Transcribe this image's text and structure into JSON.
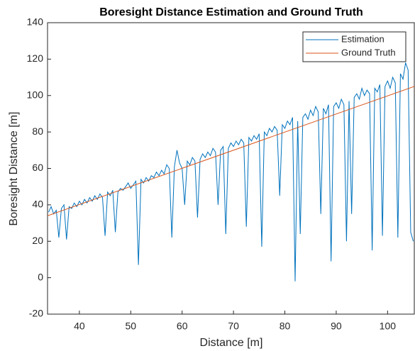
{
  "chart_data": {
    "type": "line",
    "title": "Boresight Distance Estimation and Ground Truth",
    "x_label": "Distance [m]",
    "y_label": "Boresight Distance [m]",
    "xlim": [
      33.8,
      105.2
    ],
    "ylim": [
      -20,
      140
    ],
    "xticks": [
      40,
      50,
      60,
      70,
      80,
      90,
      100
    ],
    "yticks": [
      -20,
      0,
      20,
      40,
      60,
      80,
      100,
      120,
      140
    ],
    "legend": "upper right",
    "series": [
      {
        "name": "Estimation",
        "color": "#0072bd",
        "x": [
          34,
          34.5,
          35,
          35.5,
          36,
          36.5,
          37,
          37.5,
          38,
          38.5,
          39,
          39.5,
          40,
          40.5,
          41,
          41.5,
          42,
          42.5,
          43,
          43.5,
          44,
          44.5,
          45,
          45.5,
          46,
          46.5,
          47,
          47.5,
          48,
          48.5,
          49,
          49.5,
          50,
          50.5,
          51,
          51.5,
          52,
          52.5,
          53,
          53.5,
          54,
          54.5,
          55,
          55.5,
          56,
          56.5,
          57,
          57.5,
          58,
          58.5,
          59,
          59.5,
          60,
          60.5,
          61,
          61.5,
          62,
          62.5,
          63,
          63.5,
          64,
          64.5,
          65,
          65.5,
          66,
          66.5,
          67,
          67.5,
          68,
          68.5,
          69,
          69.5,
          70,
          70.5,
          71,
          71.5,
          72,
          72.5,
          73,
          73.5,
          74,
          74.5,
          75,
          75.5,
          76,
          76.5,
          77,
          77.5,
          78,
          78.5,
          79,
          79.5,
          80,
          80.5,
          81,
          81.5,
          82,
          82.5,
          83,
          83.5,
          84,
          84.5,
          85,
          85.5,
          86,
          86.5,
          87,
          87.5,
          88,
          88.5,
          89,
          89.5,
          90,
          90.5,
          91,
          91.5,
          92,
          92.5,
          93,
          93.5,
          94,
          94.5,
          95,
          95.5,
          96,
          96.5,
          97,
          97.5,
          98,
          98.5,
          99,
          99.5,
          100,
          100.5,
          101,
          101.5,
          102,
          102.5,
          103,
          103.5,
          104,
          104.5,
          105
        ],
        "values": [
          36,
          39,
          35,
          37,
          22,
          38,
          40,
          21,
          39,
          38,
          41,
          39,
          42,
          40,
          43,
          41,
          44,
          42,
          45,
          43,
          46,
          44,
          23,
          47,
          45,
          48,
          25,
          47,
          49,
          48,
          50,
          52,
          49,
          51,
          53,
          7,
          54,
          52,
          55,
          53,
          56,
          55,
          58,
          56,
          59,
          57,
          62,
          60,
          22,
          61,
          70,
          63,
          60,
          40,
          64,
          62,
          66,
          64,
          33,
          65,
          68,
          66,
          69,
          67,
          71,
          69,
          40,
          70,
          72,
          24,
          71,
          74,
          72,
          75,
          73,
          76,
          74,
          28,
          77,
          75,
          78,
          76,
          79,
          17,
          80,
          78,
          82,
          80,
          83,
          81,
          45,
          84,
          82,
          86,
          84,
          88,
          -2,
          86,
          24,
          88,
          90,
          87,
          92,
          89,
          94,
          91,
          35,
          93,
          90,
          95,
          9,
          94,
          96,
          93,
          98,
          95,
          20,
          97,
          35,
          99,
          101,
          98,
          104,
          100,
          103,
          101,
          15,
          104,
          102,
          106,
          23,
          105,
          108,
          104,
          110,
          107,
          22,
          112,
          109,
          118,
          114,
          25,
          20
        ]
      },
      {
        "name": "Ground Truth",
        "color": "#d95319",
        "x": [
          33.8,
          105.2
        ],
        "values": [
          34,
          105
        ]
      }
    ]
  }
}
